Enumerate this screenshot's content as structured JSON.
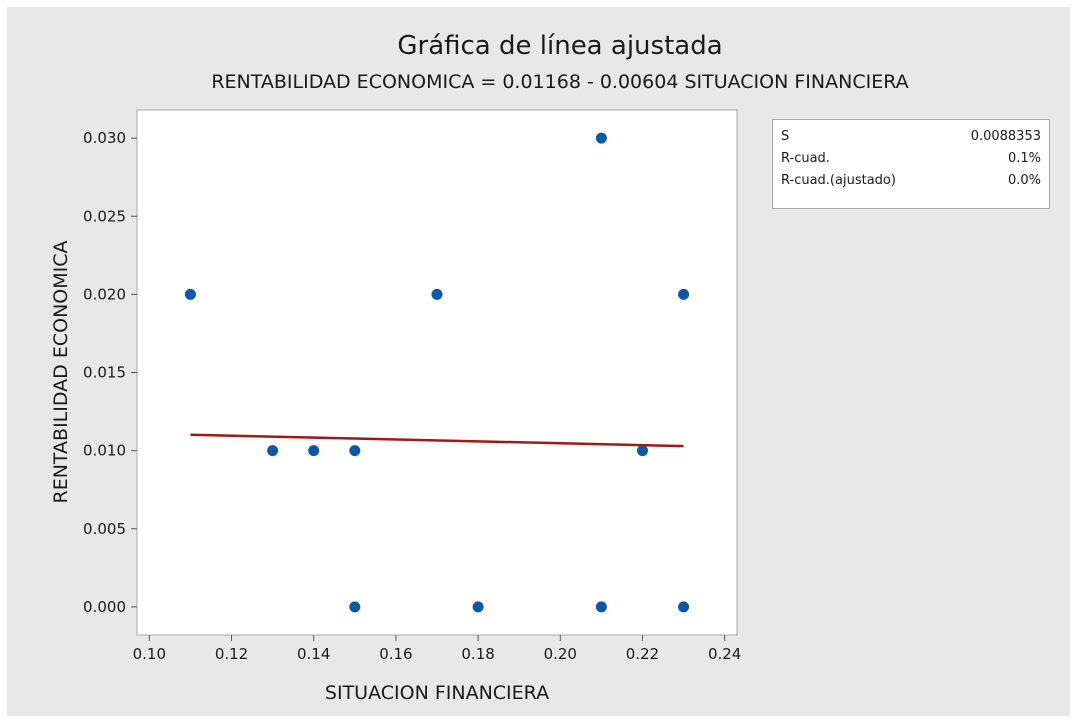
{
  "chart_data": {
    "type": "scatter",
    "title": "Gráfica de línea ajustada",
    "subtitle": "RENTABILIDAD ECONOMICA = 0.01168 - 0.00604 SITUACION FINANCIERA",
    "xlabel": "SITUACION FINANCIERA",
    "ylabel": "RENTABILIDAD ECONOMICA",
    "xlim": [
      0.097,
      0.243
    ],
    "ylim": [
      -0.0018,
      0.0318
    ],
    "x_ticks": [
      0.1,
      0.12,
      0.14,
      0.16,
      0.18,
      0.2,
      0.22,
      0.24
    ],
    "x_tick_labels": [
      "0.10",
      "0.12",
      "0.14",
      "0.16",
      "0.18",
      "0.20",
      "0.22",
      "0.24"
    ],
    "y_ticks": [
      0.0,
      0.005,
      0.01,
      0.015,
      0.02,
      0.025,
      0.03
    ],
    "y_tick_labels": [
      "0.000",
      "0.005",
      "0.010",
      "0.015",
      "0.020",
      "0.025",
      "0.030"
    ],
    "points": [
      {
        "x": 0.11,
        "y": 0.02
      },
      {
        "x": 0.13,
        "y": 0.01
      },
      {
        "x": 0.14,
        "y": 0.01
      },
      {
        "x": 0.15,
        "y": 0.01
      },
      {
        "x": 0.15,
        "y": 0.0
      },
      {
        "x": 0.17,
        "y": 0.02
      },
      {
        "x": 0.18,
        "y": 0.0
      },
      {
        "x": 0.21,
        "y": 0.03
      },
      {
        "x": 0.21,
        "y": 0.0
      },
      {
        "x": 0.22,
        "y": 0.01
      },
      {
        "x": 0.23,
        "y": 0.02
      },
      {
        "x": 0.23,
        "y": 0.0
      }
    ],
    "fit_line": {
      "intercept": 0.01168,
      "slope": -0.00604,
      "x_range": [
        0.11,
        0.23
      ]
    },
    "grid": false,
    "colors": {
      "points": "#0b57a8",
      "fit_line": "#a01818",
      "background": "#e8e8e8",
      "plot_area": "#ffffff"
    }
  },
  "stats": [
    {
      "label": "S",
      "value": "0.0088353"
    },
    {
      "label": "R-cuad.",
      "value": "0.1%"
    },
    {
      "label": "R-cuad.(ajustado)",
      "value": "0.0%"
    }
  ]
}
